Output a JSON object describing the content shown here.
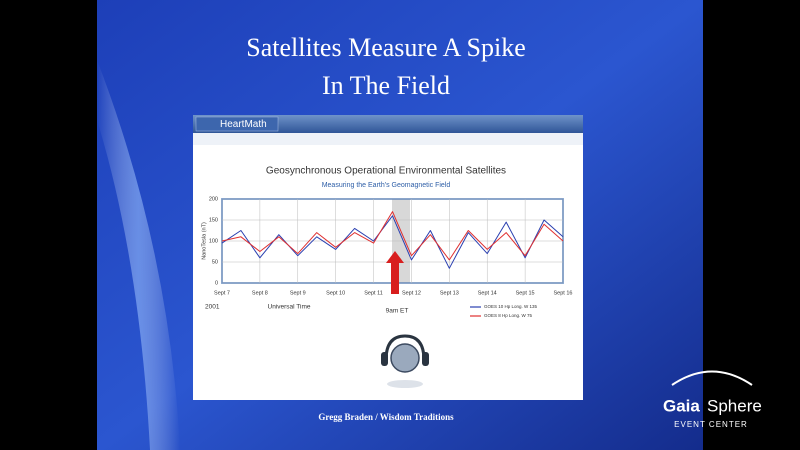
{
  "slide": {
    "title_line1": "Satellites Measure A Spike",
    "title_line2": "In The Field",
    "footer": "Gregg Braden / Wisdom Traditions"
  },
  "brand": {
    "heartmath": "HeartMath",
    "gaia": "Gaia",
    "sphere": "Sphere",
    "event_center": "EVENT CENTER"
  },
  "chart_data": {
    "type": "line",
    "title": "Geosynchronous Operational Environmental Satellites",
    "subtitle": "Measuring the Earth's Geomagnetic Field",
    "y_label": "NanoTesla (nT)",
    "annotations": [
      "2001",
      "Universal Time",
      "9am ET"
    ],
    "x": [
      7,
      7.5,
      8,
      8.5,
      9,
      9.5,
      10,
      10.5,
      11,
      11.5,
      12,
      12.5,
      13,
      13.5,
      14,
      14.5,
      15,
      15.5,
      16
    ],
    "series": [
      {
        "name": "GOES 10 Hp Long. W 135",
        "color": "#2a3fb0",
        "values": [
          95,
          125,
          60,
          115,
          65,
          110,
          80,
          130,
          100,
          160,
          55,
          125,
          35,
          120,
          70,
          145,
          60,
          150,
          110
        ]
      },
      {
        "name": "GOES 8 Hp Long. W 75",
        "color": "#e03030",
        "values": [
          100,
          110,
          75,
          110,
          70,
          120,
          85,
          120,
          95,
          170,
          65,
          115,
          55,
          125,
          80,
          120,
          65,
          140,
          100
        ]
      }
    ],
    "xlim": [
      7,
      16
    ],
    "xticks": [
      {
        "value": 7,
        "label": "Sept 7"
      },
      {
        "value": 8,
        "label": "Sept 8"
      },
      {
        "value": 9,
        "label": "Sept 9"
      },
      {
        "value": 10,
        "label": "Sept 10"
      },
      {
        "value": 11,
        "label": "Sept 11"
      },
      {
        "value": 12,
        "label": "Sept 12"
      },
      {
        "value": 13,
        "label": "Sept 13"
      },
      {
        "value": 14,
        "label": "Sept 14"
      },
      {
        "value": 15,
        "label": "Sept 15"
      },
      {
        "value": 16,
        "label": "Sept 16"
      }
    ],
    "ylim": [
      0,
      200
    ],
    "yticks": [
      0,
      50,
      100,
      150,
      200
    ],
    "grid": true
  }
}
